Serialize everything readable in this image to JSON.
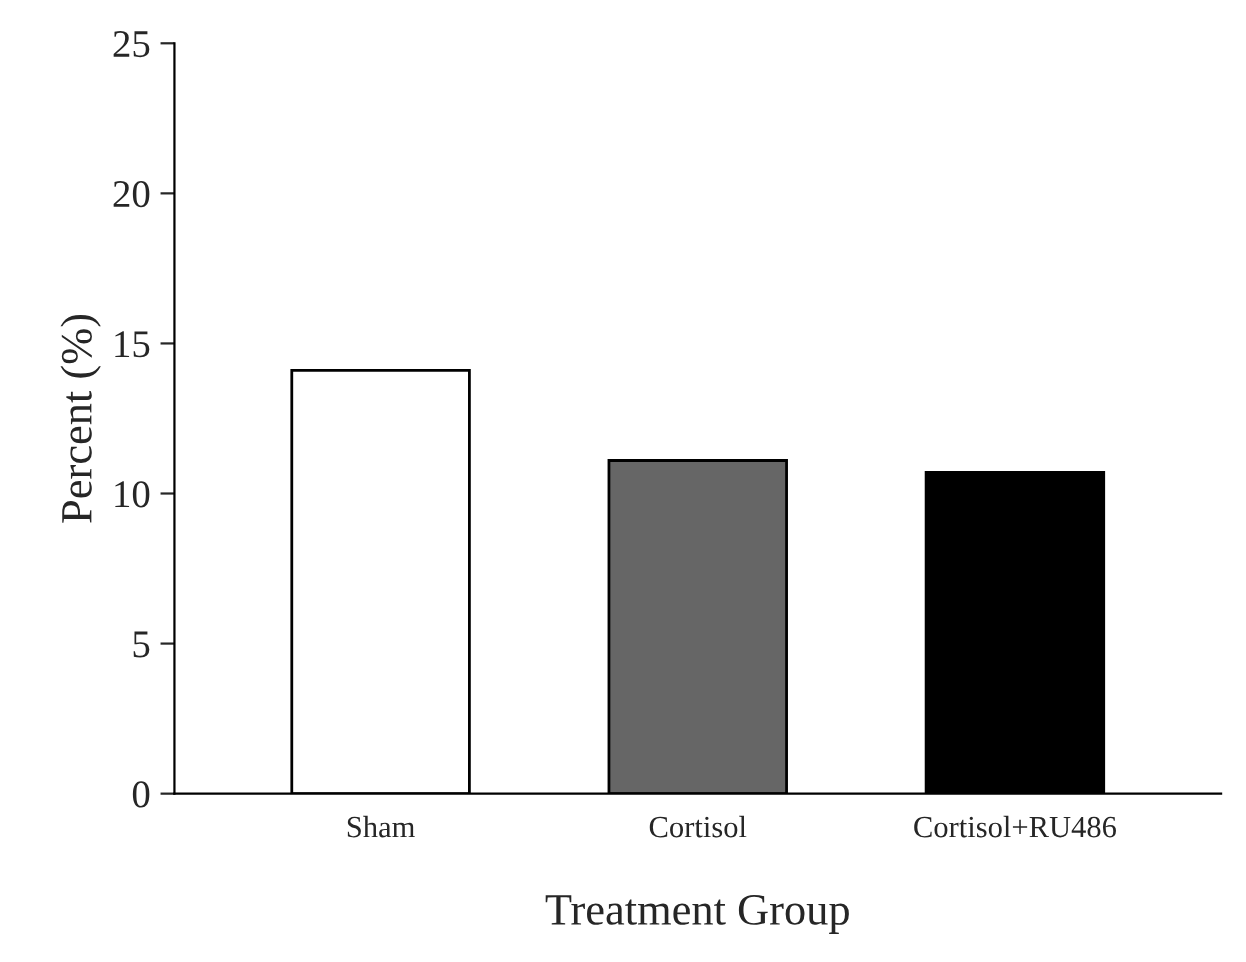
{
  "chart_data": {
    "type": "bar",
    "xlabel": "Treatment Group",
    "ylabel": "Percent (%)",
    "categories": [
      "Sham",
      "Cortisol",
      "Cortisol+RU486"
    ],
    "values": [
      14.1,
      11.1,
      10.7
    ],
    "colors": [
      "#ffffff",
      "#666666",
      "#000000"
    ],
    "ylim": [
      0,
      25
    ],
    "yticks": [
      0,
      5,
      10,
      15,
      20,
      25
    ],
    "grid": false,
    "legend": false
  }
}
